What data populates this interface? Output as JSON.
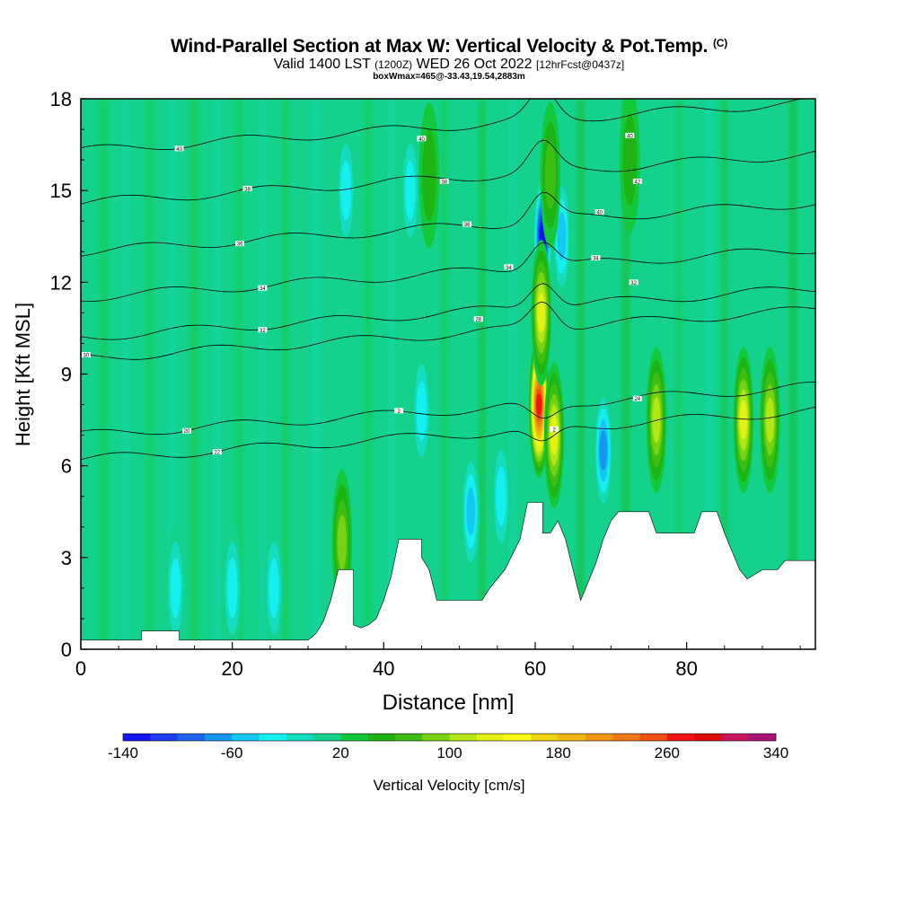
{
  "title": {
    "main": "Wind-Parallel Section at Max W: Vertical Velocity & Pot.Temp.",
    "copyright": "(C)",
    "valid_prefix": "Valid 1400 LST",
    "utc": "(1200Z)",
    "date": "WED 26 Oct 2022",
    "forecast": "[12hrFcst@0437z]",
    "boxinfo": "boxWmax=465@-33.43,19.54,2883m"
  },
  "chart_data": {
    "type": "heatmap",
    "title": "Wind-Parallel Section at Max W: Vertical Velocity & Pot.Temp.",
    "xlabel": "Distance [nm]",
    "ylabel": "Height [Kft MSL]",
    "xlim": [
      0,
      97
    ],
    "ylim": [
      0,
      18
    ],
    "xticks": [
      0,
      20,
      40,
      60,
      80
    ],
    "yticks": [
      0,
      3,
      6,
      9,
      12,
      15,
      18
    ],
    "colorbar": {
      "label": "Vertical Velocity [cm/s]",
      "min": -140,
      "max": 340,
      "step": 20,
      "tick_values": [
        -140,
        -60,
        20,
        100,
        180,
        260,
        340
      ],
      "colors": [
        "#1414f0",
        "#1e3cf0",
        "#1e64f0",
        "#1496f0",
        "#14c8f0",
        "#14f0f0",
        "#14dcbe",
        "#14d28c",
        "#14c83c",
        "#1eb414",
        "#3cbe14",
        "#78d214",
        "#b4e614",
        "#e6f014",
        "#fafa14",
        "#f0d214",
        "#f0b414",
        "#f09614",
        "#f07814",
        "#f05014",
        "#f01414",
        "#dc0a0a",
        "#c8145a",
        "#aa1478"
      ]
    },
    "terrain": [
      [
        0,
        0.3
      ],
      [
        8,
        0.3
      ],
      [
        8,
        0.6
      ],
      [
        13,
        0.6
      ],
      [
        13,
        0.3
      ],
      [
        30,
        0.3
      ],
      [
        31,
        0.5
      ],
      [
        32,
        0.9
      ],
      [
        33,
        1.6
      ],
      [
        34,
        2.6
      ],
      [
        36,
        2.6
      ],
      [
        36,
        0.8
      ],
      [
        37,
        0.7
      ],
      [
        38,
        0.8
      ],
      [
        39,
        1.0
      ],
      [
        40,
        1.6
      ],
      [
        41,
        2.4
      ],
      [
        42,
        3.6
      ],
      [
        45,
        3.6
      ],
      [
        45,
        3.0
      ],
      [
        46,
        2.6
      ],
      [
        47,
        1.6
      ],
      [
        53,
        1.6
      ],
      [
        54,
        2.0
      ],
      [
        56,
        2.6
      ],
      [
        58,
        3.6
      ],
      [
        59,
        4.8
      ],
      [
        61,
        4.8
      ],
      [
        61,
        3.8
      ],
      [
        62,
        3.8
      ],
      [
        63,
        4.2
      ],
      [
        64,
        3.6
      ],
      [
        65,
        2.6
      ],
      [
        66,
        1.6
      ],
      [
        67,
        2.2
      ],
      [
        68,
        2.8
      ],
      [
        69,
        3.6
      ],
      [
        70,
        4.2
      ],
      [
        71,
        4.5
      ],
      [
        75,
        4.5
      ],
      [
        76,
        3.8
      ],
      [
        81,
        3.8
      ],
      [
        82,
        4.5
      ],
      [
        84,
        4.5
      ],
      [
        85,
        3.8
      ],
      [
        86,
        3.2
      ],
      [
        87,
        2.6
      ],
      [
        88,
        2.3
      ],
      [
        90,
        2.6
      ],
      [
        92,
        2.6
      ],
      [
        93,
        2.9
      ],
      [
        97,
        2.9
      ]
    ],
    "updrafts": [
      {
        "x": 60.5,
        "z": 8.0,
        "w": 280
      },
      {
        "x": 60.8,
        "z": 11.0,
        "w": 130
      },
      {
        "x": 62.5,
        "z": 7.0,
        "w": 140
      },
      {
        "x": 76.0,
        "z": 7.5,
        "w": 120
      },
      {
        "x": 87.5,
        "z": 7.5,
        "w": 130
      },
      {
        "x": 91.0,
        "z": 7.5,
        "w": 110
      },
      {
        "x": 34.5,
        "z": 3.5,
        "w": 90
      },
      {
        "x": 62.0,
        "z": 15.5,
        "w": 70
      },
      {
        "x": 72.5,
        "z": 16.0,
        "w": 60
      },
      {
        "x": 46.0,
        "z": 15.5,
        "w": 60
      }
    ],
    "downdrafts": [
      {
        "x": 61.0,
        "z": 13.5,
        "w": -130
      },
      {
        "x": 69.0,
        "z": 6.5,
        "w": -80
      },
      {
        "x": 51.5,
        "z": 4.5,
        "w": -60
      },
      {
        "x": 20.0,
        "z": 2.0,
        "w": -40
      },
      {
        "x": 25.5,
        "z": 2.0,
        "w": -35
      },
      {
        "x": 12.5,
        "z": 2.0,
        "w": -40
      },
      {
        "x": 35.0,
        "z": 15.0,
        "w": -40
      },
      {
        "x": 43.5,
        "z": 15.0,
        "w": -35
      },
      {
        "x": 45.0,
        "z": 7.8,
        "w": -40
      },
      {
        "x": 55.5,
        "z": 5.0,
        "w": -40
      },
      {
        "x": 63.5,
        "z": 13.5,
        "w": -50
      }
    ],
    "isentropes": [
      {
        "y0": 6.2,
        "label": "22",
        "lx": 18
      },
      {
        "y0": 7.0,
        "label": "20",
        "lx": 14
      },
      {
        "y0": 9.5,
        "label": "30",
        "lx": 0.7
      },
      {
        "y0": 10.2,
        "label": "32",
        "lx": 24
      },
      {
        "y0": 11.5,
        "label": "34",
        "lx": 24
      },
      {
        "y0": 13.0,
        "label": "36",
        "lx": 21
      },
      {
        "y0": 14.6,
        "label": "38",
        "lx": 22
      },
      {
        "y0": 16.3,
        "label": "40",
        "lx": 13
      }
    ],
    "contour_labels": [
      {
        "x": 42.0,
        "z": 7.8,
        "text": "2"
      },
      {
        "x": 52.5,
        "z": 10.8,
        "text": "28"
      },
      {
        "x": 56.5,
        "z": 12.5,
        "text": "34"
      },
      {
        "x": 51.0,
        "z": 13.9,
        "text": "36"
      },
      {
        "x": 48.0,
        "z": 15.3,
        "text": "38"
      },
      {
        "x": 45.0,
        "z": 16.7,
        "text": "40"
      },
      {
        "x": 68.5,
        "z": 14.3,
        "text": "40"
      },
      {
        "x": 68.0,
        "z": 12.8,
        "text": "34"
      },
      {
        "x": 72.5,
        "z": 16.8,
        "text": "40"
      },
      {
        "x": 73.5,
        "z": 15.3,
        "text": "42"
      },
      {
        "x": 73.0,
        "z": 12.0,
        "text": "32"
      },
      {
        "x": 73.5,
        "z": 8.2,
        "text": "24"
      },
      {
        "x": 62.5,
        "z": 7.2,
        "text": "2"
      }
    ]
  }
}
